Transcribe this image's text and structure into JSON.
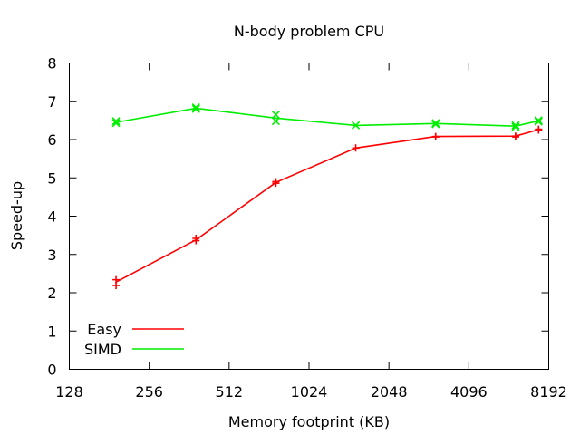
{
  "chart_data": {
    "type": "line",
    "title": "N-body problem CPU",
    "xlabel": "Memory footprint (KB)",
    "ylabel": "Speed-up",
    "xscale": "log2",
    "xlim": [
      128,
      8192
    ],
    "ylim": [
      0,
      8
    ],
    "xticks": [
      128,
      256,
      512,
      1024,
      2048,
      4096,
      8192
    ],
    "xtick_labels": [
      "128",
      "256",
      "512",
      "1024",
      "2048",
      "4096",
      "8192"
    ],
    "yticks": [
      0,
      1,
      2,
      3,
      4,
      5,
      6,
      7,
      8
    ],
    "ytick_labels": [
      "0",
      "1",
      "2",
      "3",
      "4",
      "5",
      "6",
      "7",
      "8"
    ],
    "grid": false,
    "legend_position": "bottom-left",
    "series": [
      {
        "name": "Easy",
        "color": "#ff0000",
        "marker": "plus",
        "x": [
          192,
          384,
          768,
          1536,
          3072,
          6144,
          7500
        ],
        "values": [
          2.28,
          3.38,
          4.88,
          5.78,
          6.08,
          6.09,
          6.26
        ],
        "samples": [
          [
            192,
            2.34
          ],
          [
            192,
            2.19
          ],
          [
            384,
            3.42
          ],
          [
            384,
            3.36
          ],
          [
            768,
            4.9
          ],
          [
            768,
            4.86
          ],
          [
            1536,
            5.78
          ],
          [
            3072,
            6.08
          ],
          [
            3072,
            6.07
          ],
          [
            6144,
            6.09
          ],
          [
            6144,
            6.07
          ],
          [
            7500,
            6.27
          ],
          [
            7500,
            6.25
          ]
        ]
      },
      {
        "name": "SIMD",
        "color": "#00ee00",
        "marker": "x",
        "x": [
          192,
          384,
          768,
          1536,
          3072,
          6144,
          7500
        ],
        "values": [
          6.45,
          6.82,
          6.56,
          6.37,
          6.42,
          6.35,
          6.49
        ],
        "samples": [
          [
            192,
            6.48
          ],
          [
            192,
            6.43
          ],
          [
            384,
            6.84
          ],
          [
            384,
            6.8
          ],
          [
            768,
            6.65
          ],
          [
            768,
            6.48
          ],
          [
            1536,
            6.37
          ],
          [
            3072,
            6.43
          ],
          [
            3072,
            6.4
          ],
          [
            6144,
            6.37
          ],
          [
            6144,
            6.33
          ],
          [
            7500,
            6.5
          ],
          [
            7500,
            6.47
          ]
        ]
      }
    ]
  }
}
